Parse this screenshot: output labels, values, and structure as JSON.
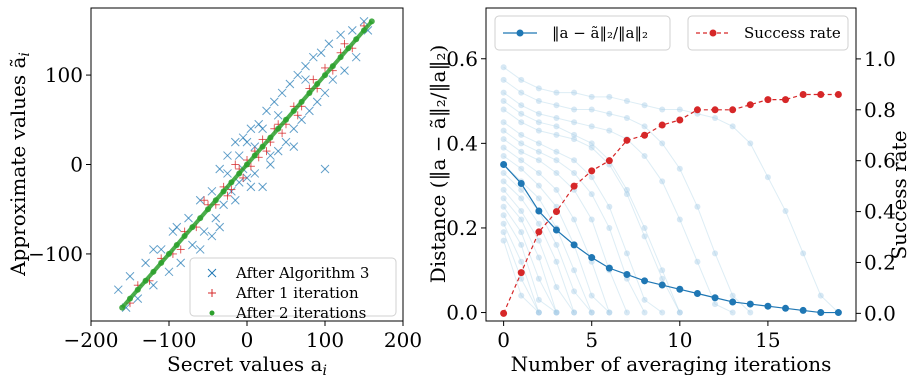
{
  "chart_data": [
    {
      "type": "scatter",
      "xlabel": "Secret values $a_i$",
      "ylabel": "Approximate values $\\tilde{a}_i$",
      "xlim": [
        -200,
        200
      ],
      "ylim": [
        -175,
        175
      ],
      "x_ticks": [
        "−200",
        "−100",
        "0",
        "100",
        "200"
      ],
      "x_tick_values": [
        -200,
        -100,
        0,
        100,
        200
      ],
      "y_ticks": [
        "−100",
        "0",
        "100"
      ],
      "y_tick_values": [
        -100,
        0,
        100
      ],
      "grid": false,
      "legend_position": "lower-right",
      "series": [
        {
          "name": "After Algorithm 3",
          "marker": "x",
          "color": "#1f77b4",
          "points": [
            [
              -155,
              -160
            ],
            [
              -150,
              -125
            ],
            [
              -140,
              -150
            ],
            [
              -130,
              -110
            ],
            [
              -120,
              -135
            ],
            [
              -110,
              -95
            ],
            [
              -100,
              -120
            ],
            [
              -95,
              -75
            ],
            [
              -85,
              -110
            ],
            [
              -75,
              -60
            ],
            [
              -70,
              -90
            ],
            [
              -60,
              -40
            ],
            [
              -55,
              -75
            ],
            [
              -45,
              -30
            ],
            [
              -40,
              -60
            ],
            [
              -35,
              -5
            ],
            [
              -30,
              -45
            ],
            [
              -25,
              10
            ],
            [
              -20,
              -30
            ],
            [
              -15,
              25
            ],
            [
              -10,
              -20
            ],
            [
              -5,
              30
            ],
            [
              0,
              -15
            ],
            [
              5,
              40
            ],
            [
              10,
              -10
            ],
            [
              15,
              45
            ],
            [
              20,
              -25
            ],
            [
              25,
              60
            ],
            [
              30,
              0
            ],
            [
              35,
              70
            ],
            [
              40,
              15
            ],
            [
              45,
              80
            ],
            [
              50,
              25
            ],
            [
              55,
              90
            ],
            [
              60,
              40
            ],
            [
              65,
              100
            ],
            [
              70,
              50
            ],
            [
              75,
              110
            ],
            [
              80,
              60
            ],
            [
              85,
              120
            ],
            [
              90,
              70
            ],
            [
              95,
              125
            ],
            [
              100,
              80
            ],
            [
              105,
              135
            ],
            [
              110,
              95
            ],
            [
              120,
              145
            ],
            [
              125,
              105
            ],
            [
              135,
              150
            ],
            [
              140,
              120
            ],
            [
              150,
              160
            ],
            [
              -60,
              -95
            ],
            [
              -90,
              -70
            ],
            [
              -35,
              -70
            ],
            [
              0,
              25
            ],
            [
              -15,
              -40
            ],
            [
              20,
              40
            ],
            [
              -120,
              -95
            ],
            [
              100,
              -5
            ],
            [
              -5,
              -5
            ],
            [
              10,
              20
            ],
            [
              -25,
              -10
            ],
            [
              30,
              10
            ],
            [
              60,
              20
            ],
            [
              -45,
              -80
            ],
            [
              75,
              95
            ],
            [
              -165,
              -140
            ],
            [
              155,
              150
            ],
            [
              -10,
              10
            ],
            [
              5,
              -25
            ],
            [
              40,
              55
            ]
          ]
        },
        {
          "name": "After 1 iteration",
          "marker": "+",
          "color": "#d62728",
          "points": [
            [
              -150,
              -155
            ],
            [
              -140,
              -135
            ],
            [
              -125,
              -130
            ],
            [
              -110,
              -105
            ],
            [
              -95,
              -100
            ],
            [
              -80,
              -75
            ],
            [
              -65,
              -70
            ],
            [
              -50,
              -45
            ],
            [
              -40,
              -45
            ],
            [
              -30,
              -25
            ],
            [
              -20,
              -28
            ],
            [
              -10,
              -5
            ],
            [
              -5,
              -15
            ],
            [
              0,
              5
            ],
            [
              5,
              -2
            ],
            [
              10,
              15
            ],
            [
              15,
              8
            ],
            [
              20,
              28
            ],
            [
              30,
              25
            ],
            [
              40,
              45
            ],
            [
              50,
              45
            ],
            [
              60,
              65
            ],
            [
              70,
              65
            ],
            [
              80,
              85
            ],
            [
              90,
              85
            ],
            [
              100,
              108
            ],
            [
              110,
              105
            ],
            [
              120,
              125
            ],
            [
              135,
              130
            ],
            [
              150,
              155
            ],
            [
              -55,
              -40
            ],
            [
              -25,
              -35
            ],
            [
              25,
              15
            ],
            [
              45,
              35
            ],
            [
              85,
              95
            ],
            [
              -85,
              -95
            ],
            [
              -15,
              0
            ],
            [
              35,
              40
            ],
            [
              65,
              55
            ],
            [
              125,
              135
            ]
          ]
        },
        {
          "name": "After 2 iterations",
          "marker": "o",
          "color": "#2ca02c",
          "points": [
            [
              -160,
              -160
            ],
            [
              -150,
              -150
            ],
            [
              -140,
              -140
            ],
            [
              -130,
              -130
            ],
            [
              -120,
              -120
            ],
            [
              -110,
              -110
            ],
            [
              -100,
              -100
            ],
            [
              -90,
              -90
            ],
            [
              -80,
              -80
            ],
            [
              -70,
              -70
            ],
            [
              -60,
              -60
            ],
            [
              -50,
              -50
            ],
            [
              -40,
              -40
            ],
            [
              -30,
              -30
            ],
            [
              -20,
              -20
            ],
            [
              -10,
              -10
            ],
            [
              0,
              0
            ],
            [
              10,
              10
            ],
            [
              20,
              20
            ],
            [
              30,
              30
            ],
            [
              40,
              40
            ],
            [
              50,
              50
            ],
            [
              60,
              60
            ],
            [
              70,
              70
            ],
            [
              80,
              80
            ],
            [
              90,
              90
            ],
            [
              100,
              100
            ],
            [
              110,
              110
            ],
            [
              120,
              120
            ],
            [
              130,
              130
            ],
            [
              140,
              140
            ],
            [
              150,
              150
            ],
            [
              160,
              160
            ]
          ]
        }
      ]
    },
    {
      "type": "line",
      "xlabel": "Number of averaging iterations",
      "ylabel": "Distance $(\\|a-\\tilde{a}\\|_2/\\|a\\|_2)$",
      "ylabel_right": "Success rate",
      "xlim": [
        -1,
        20
      ],
      "ylim": [
        -0.02,
        0.72
      ],
      "ylim_right": [
        -0.03,
        1.2
      ],
      "x_ticks": [
        "0",
        "5",
        "10",
        "15"
      ],
      "x_tick_values": [
        0,
        5,
        10,
        15
      ],
      "y_ticks": [
        "0.0",
        "0.2",
        "0.4",
        "0.6"
      ],
      "y_tick_values": [
        0,
        0.2,
        0.4,
        0.6
      ],
      "y_ticks_right": [
        "0.0",
        "0.2",
        "0.4",
        "0.6",
        "0.8",
        "1.0"
      ],
      "y_tick_values_right": [
        0,
        0.2,
        0.4,
        0.6,
        0.8,
        1.0
      ],
      "grid": false,
      "legend_position": "top",
      "x": [
        0,
        1,
        2,
        3,
        4,
        5,
        6,
        7,
        8,
        9,
        10,
        11,
        12,
        13,
        14,
        15,
        16,
        17,
        18,
        19
      ],
      "series": [
        {
          "name": "$\\|a-\\tilde{a}\\|_2/\\|a\\|_2$",
          "axis": "left",
          "color": "#1f77b4",
          "style": "solid",
          "values": [
            0.35,
            0.305,
            0.24,
            0.195,
            0.16,
            0.13,
            0.105,
            0.09,
            0.075,
            0.065,
            0.055,
            0.045,
            0.035,
            0.025,
            0.02,
            0.015,
            0.01,
            0.005,
            0.0,
            0.0
          ]
        },
        {
          "name": "Success rate",
          "axis": "right",
          "color": "#d62728",
          "style": "dashed",
          "values": [
            0.0,
            0.16,
            0.32,
            0.4,
            0.5,
            0.56,
            0.6,
            0.68,
            0.7,
            0.74,
            0.76,
            0.8,
            0.8,
            0.8,
            0.82,
            0.84,
            0.84,
            0.86,
            0.86,
            0.86
          ]
        }
      ],
      "individual_runs": [
        [
          0.58,
          0.55,
          0.53,
          0.52,
          0.52,
          0.51,
          0.51,
          0.5,
          0.49,
          0.48,
          0.48,
          0.47,
          0.46,
          0.44,
          0.4,
          0.32,
          0.24,
          0.14,
          0.04,
          0.0
        ],
        [
          0.55,
          0.52,
          0.5,
          0.49,
          0.48,
          0.48,
          0.47,
          0.46,
          0.44,
          0.4,
          0.34,
          0.25,
          0.14,
          0.04,
          0.0
        ],
        [
          0.52,
          0.49,
          0.47,
          0.46,
          0.45,
          0.44,
          0.43,
          0.41,
          0.37,
          0.31,
          0.22,
          0.12,
          0.02,
          0.0
        ],
        [
          0.5,
          0.47,
          0.45,
          0.44,
          0.42,
          0.4,
          0.36,
          0.29,
          0.2,
          0.1,
          0.0
        ],
        [
          0.48,
          0.45,
          0.43,
          0.42,
          0.41,
          0.39,
          0.35,
          0.28,
          0.18,
          0.08,
          0.0
        ],
        [
          0.45,
          0.42,
          0.4,
          0.38,
          0.36,
          0.32,
          0.25,
          0.14,
          0.03,
          0.0
        ],
        [
          0.43,
          0.4,
          0.38,
          0.36,
          0.33,
          0.28,
          0.2,
          0.08,
          0.0
        ],
        [
          0.41,
          0.38,
          0.36,
          0.33,
          0.29,
          0.22,
          0.1,
          0.0
        ],
        [
          0.39,
          0.36,
          0.33,
          0.29,
          0.22,
          0.12,
          0.0
        ],
        [
          0.37,
          0.34,
          0.3,
          0.25,
          0.16,
          0.04,
          0.0
        ],
        [
          0.35,
          0.31,
          0.27,
          0.2,
          0.1,
          0.0
        ],
        [
          0.33,
          0.29,
          0.24,
          0.16,
          0.05,
          0.0
        ],
        [
          0.31,
          0.27,
          0.21,
          0.12,
          0.0
        ],
        [
          0.29,
          0.24,
          0.17,
          0.06,
          0.0
        ],
        [
          0.27,
          0.22,
          0.13,
          0.0
        ],
        [
          0.25,
          0.19,
          0.08,
          0.0
        ],
        [
          0.23,
          0.16,
          0.03,
          0.0
        ],
        [
          0.21,
          0.12,
          0.0
        ],
        [
          0.19,
          0.08,
          0.0
        ],
        [
          0.17,
          0.04,
          0.0
        ]
      ]
    }
  ],
  "left_plot": {
    "ylabel_text": "Approximate values ã",
    "ylabel_sub": "i",
    "xlabel_text": "Secret values a",
    "xlabel_sub": "i"
  },
  "right_plot": {
    "ylabel_text": "Distance (‖a − ã‖₂/‖a‖₂)",
    "ylabel_right_text": "Success rate",
    "xlabel_text": "Number of averaging iterations",
    "legend_dist_text": "‖a − ã‖₂/‖a‖₂"
  }
}
